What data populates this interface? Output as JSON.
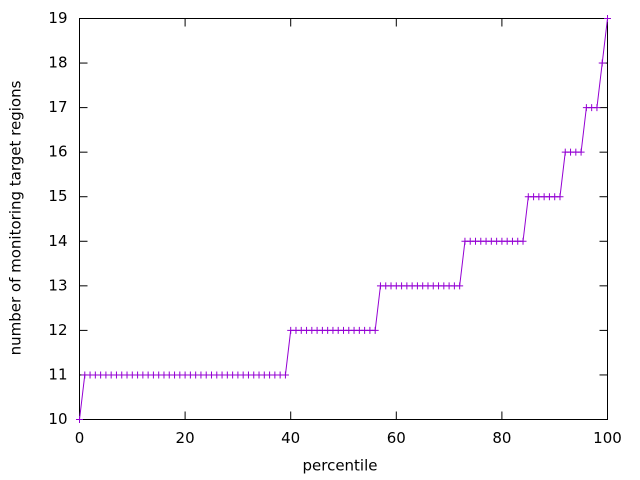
{
  "chart_data": {
    "type": "line",
    "xlabel": "percentile",
    "ylabel": "number of monitoring target regions",
    "x": [
      0,
      1,
      2,
      3,
      4,
      5,
      6,
      7,
      8,
      9,
      10,
      11,
      12,
      13,
      14,
      15,
      16,
      17,
      18,
      19,
      20,
      21,
      22,
      23,
      24,
      25,
      26,
      27,
      28,
      29,
      30,
      31,
      32,
      33,
      34,
      35,
      36,
      37,
      38,
      39,
      40,
      41,
      42,
      43,
      44,
      45,
      46,
      47,
      48,
      49,
      50,
      51,
      52,
      53,
      54,
      55,
      56,
      57,
      58,
      59,
      60,
      61,
      62,
      63,
      64,
      65,
      66,
      67,
      68,
      69,
      70,
      71,
      72,
      73,
      74,
      75,
      76,
      77,
      78,
      79,
      80,
      81,
      82,
      83,
      84,
      85,
      86,
      87,
      88,
      89,
      90,
      91,
      92,
      93,
      94,
      95,
      96,
      97,
      98,
      99,
      100
    ],
    "series": [
      {
        "color": "#9400d3",
        "values": [
          10,
          11,
          11,
          11,
          11,
          11,
          11,
          11,
          11,
          11,
          11,
          11,
          11,
          11,
          11,
          11,
          11,
          11,
          11,
          11,
          11,
          11,
          11,
          11,
          11,
          11,
          11,
          11,
          11,
          11,
          11,
          11,
          11,
          11,
          11,
          11,
          11,
          11,
          11,
          11,
          12,
          12,
          12,
          12,
          12,
          12,
          12,
          12,
          12,
          12,
          12,
          12,
          12,
          12,
          12,
          12,
          12,
          13,
          13,
          13,
          13,
          13,
          13,
          13,
          13,
          13,
          13,
          13,
          13,
          13,
          13,
          13,
          13,
          14,
          14,
          14,
          14,
          14,
          14,
          14,
          14,
          14,
          14,
          14,
          14,
          15,
          15,
          15,
          15,
          15,
          15,
          15,
          16,
          16,
          16,
          16,
          17,
          17,
          17,
          18,
          19
        ]
      }
    ],
    "xlim": [
      0,
      100
    ],
    "xticks": [
      0,
      20,
      40,
      60,
      80,
      100
    ],
    "ylim": [
      10,
      19
    ],
    "yticks": [
      10,
      11,
      12,
      13,
      14,
      15,
      16,
      17,
      18,
      19
    ]
  }
}
